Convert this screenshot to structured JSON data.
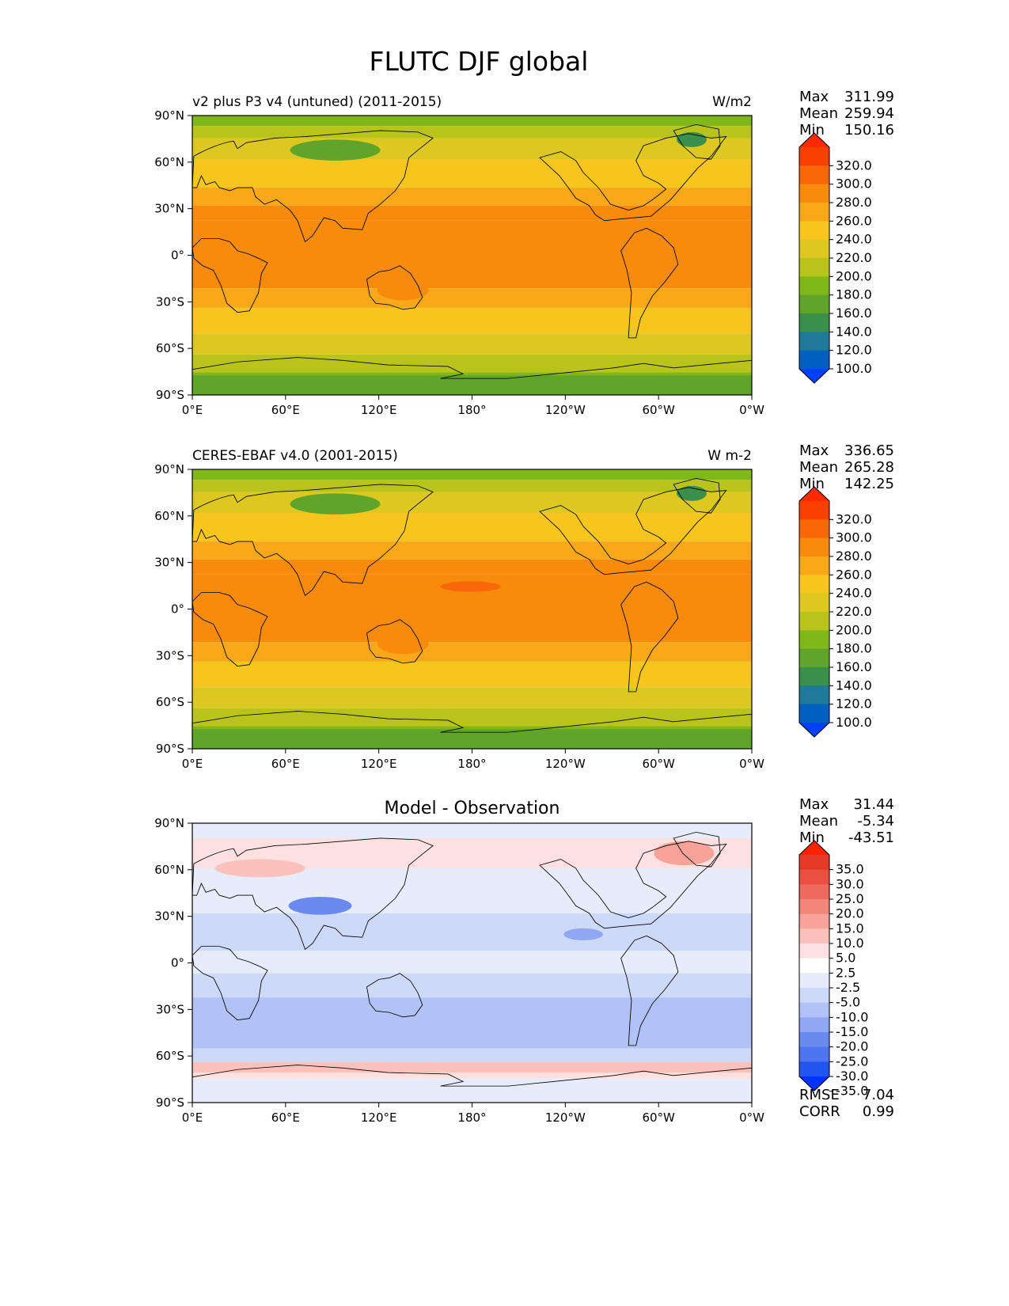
{
  "figure": {
    "title": "FLUTC DJF global"
  },
  "axes": {
    "lat_ticks": [
      "90°N",
      "60°N",
      "30°N",
      "0°",
      "30°S",
      "60°S",
      "90°S"
    ],
    "lon_ticks": [
      "0°E",
      "60°E",
      "120°E",
      "180°",
      "120°W",
      "60°W",
      "0°W"
    ]
  },
  "palettes": {
    "abs": [
      "#0040ff",
      "#0060c0",
      "#1f7a99",
      "#3a8f4a",
      "#60a52a",
      "#80b81a",
      "#b8c41a",
      "#dcc820",
      "#f6c61e",
      "#f8a818",
      "#f88a0c",
      "#f86808",
      "#f84000",
      "#ff2a00"
    ],
    "diff": [
      "#0033ff",
      "#2255ee",
      "#4f74f0",
      "#6b8af0",
      "#90a8f4",
      "#b0c2f6",
      "#cdd9f8",
      "#e6ecfa",
      "#ffffff",
      "#fde0e0",
      "#fbc2bc",
      "#f8a39a",
      "#f4857a",
      "#ef6a5e",
      "#ea5040",
      "#e53a28",
      "#ff2200"
    ]
  },
  "panels": [
    {
      "id": "model",
      "title": "v2 plus P3 v4 (untuned) (2011-2015)",
      "center_title": "",
      "units": "W/m2",
      "stats": [
        {
          "label": "Max",
          "value": "311.99"
        },
        {
          "label": "Mean",
          "value": "259.94"
        },
        {
          "label": "Min",
          "value": "150.16"
        }
      ],
      "colorbar": {
        "palette": "abs",
        "labels": [
          "320.0",
          "300.0",
          "280.0",
          "260.0",
          "240.0",
          "220.0",
          "200.0",
          "180.0",
          "160.0",
          "140.0",
          "120.0",
          "100.0"
        ]
      },
      "extra_stats": []
    },
    {
      "id": "obs",
      "title": "CERES-EBAF v4.0 (2001-2015)",
      "center_title": "",
      "units": "W m-2",
      "stats": [
        {
          "label": "Max",
          "value": "336.65"
        },
        {
          "label": "Mean",
          "value": "265.28"
        },
        {
          "label": "Min",
          "value": "142.25"
        }
      ],
      "colorbar": {
        "palette": "abs",
        "labels": [
          "320.0",
          "300.0",
          "280.0",
          "260.0",
          "240.0",
          "220.0",
          "200.0",
          "180.0",
          "160.0",
          "140.0",
          "120.0",
          "100.0"
        ]
      },
      "extra_stats": []
    },
    {
      "id": "diff",
      "title": "",
      "center_title": "Model - Observation",
      "units": "",
      "stats": [
        {
          "label": "Max",
          "value": "31.44"
        },
        {
          "label": "Mean",
          "value": "-5.34"
        },
        {
          "label": "Min",
          "value": "-43.51"
        }
      ],
      "colorbar": {
        "palette": "diff",
        "labels": [
          "35.0",
          "30.0",
          "25.0",
          "20.0",
          "15.0",
          "10.0",
          "5.0",
          "2.5",
          "-2.5",
          "-5.0",
          "-10.0",
          "-15.0",
          "-20.0",
          "-25.0",
          "-30.0",
          "-35.0"
        ]
      },
      "extra_stats": [
        {
          "label": "RMSE",
          "value": "7.04"
        },
        {
          "label": "CORR",
          "value": "0.99"
        }
      ]
    }
  ]
}
